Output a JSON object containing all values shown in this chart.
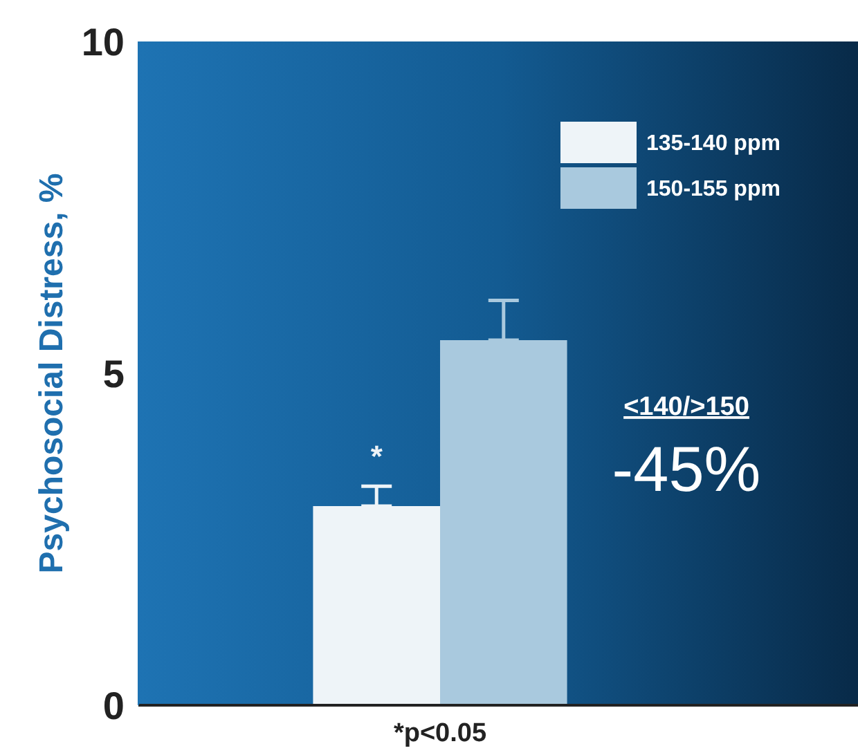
{
  "chart_data": {
    "type": "bar",
    "ylabel": "Psychosocial Distress, %",
    "xlabel": "*p<0.05",
    "categories": [
      null
    ],
    "series": [
      {
        "name": "135-140 ppm",
        "color": "#eef4f8",
        "values": [
          3.0
        ],
        "errors": [
          [
            3.0,
            3.3
          ]
        ]
      },
      {
        "name": "150-155 ppm",
        "color": "#a9c9de",
        "values": [
          5.5
        ],
        "errors": [
          [
            5.5,
            6.1
          ]
        ]
      }
    ],
    "ylim": [
      0,
      10
    ],
    "yticks": [
      0,
      5,
      10
    ],
    "grid": false,
    "legend": "top right",
    "annotations": [
      "*",
      "<140/>150",
      "-45%"
    ]
  }
}
